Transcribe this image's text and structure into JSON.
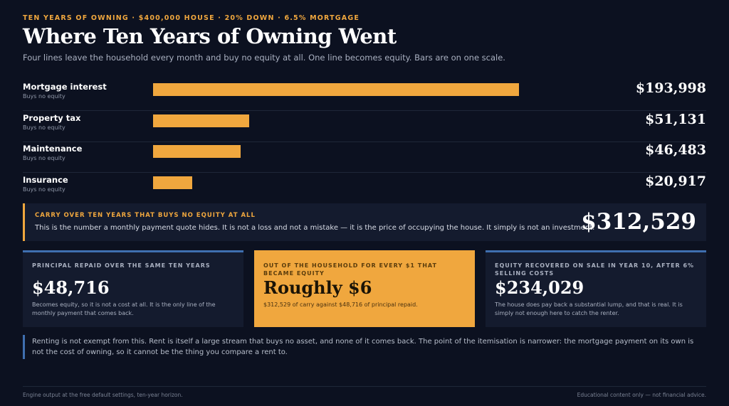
{
  "header": {
    "kicker": "TEN YEARS OF OWNING · $400,000 HOUSE · 20% DOWN · 6.5% MORTGAGE",
    "title": "Where Ten Years of Owning Went",
    "subtitle": "Four lines leave the household every month and buy no equity at all. One line becomes equity. Bars are on one scale."
  },
  "chart_data": {
    "type": "bar",
    "orientation": "horizontal",
    "categories": [
      "Mortgage interest",
      "Property tax",
      "Maintenance",
      "Insurance"
    ],
    "category_notes": [
      "Buys no equity",
      "Buys no equity",
      "Buys no equity",
      "Buys no equity"
    ],
    "values": [
      193998,
      51131,
      46483,
      20917
    ],
    "value_labels": [
      "$193,998",
      "$51,131",
      "$46,483",
      "$20,917"
    ],
    "color": "#f0a73e"
  },
  "summary": {
    "title": "CARRY OVER TEN YEARS THAT BUYS NO EQUITY AT ALL",
    "text": "This is the number a monthly payment quote hides. It is not a loss and not a mistake — it is the price of occupying the house. It simply is not an investment.",
    "value": "$312,529"
  },
  "cards": [
    {
      "title": "PRINCIPAL REPAID OVER THE SAME TEN YEARS",
      "value": "$48,716",
      "text": "Becomes equity, so it is not a cost at all. It is the only line of the monthly payment that comes back."
    },
    {
      "title": "OUT OF THE HOUSEHOLD FOR EVERY $1 THAT BECAME EQUITY",
      "value": "Roughly $6",
      "text": "$312,529 of carry against $48,716 of principal repaid."
    },
    {
      "title": "EQUITY RECOVERED ON SALE IN YEAR 10, AFTER 6% SELLING COSTS",
      "value": "$234,029",
      "text": "The house does pay back a substantial lump, and that is real. It is simply not enough here to catch the renter."
    }
  ],
  "note": "Renting is not exempt from this. Rent is itself a large stream that buys no asset, and none of it comes back. The point of the itemisation is narrower: the mortgage payment on its own is not the cost of owning, so it cannot be the thing you compare a rent to.",
  "footer": {
    "left": "Engine output at the free default settings, ten-year horizon.",
    "right": "Educational content only — not financial advice."
  }
}
